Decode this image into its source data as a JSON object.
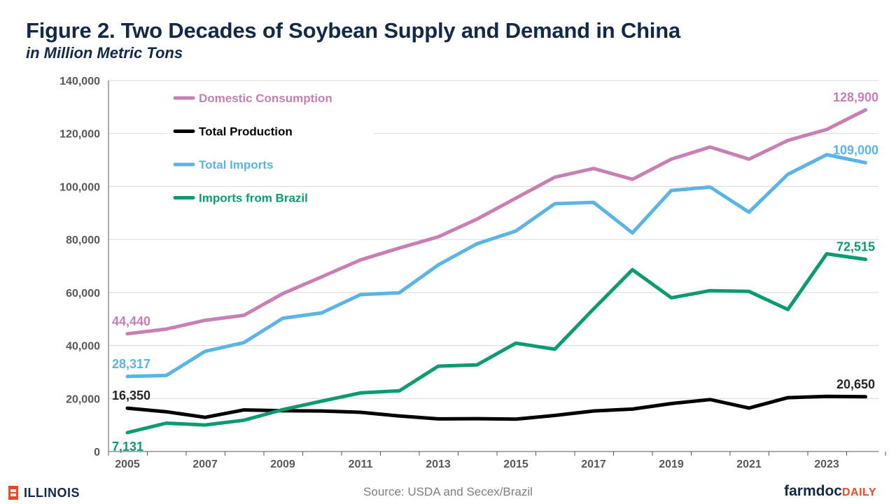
{
  "header": {
    "title": "Figure 2. Two Decades of Soybean Supply and Demand in China",
    "subtitle": "in Million Metric Tons"
  },
  "footer": {
    "source": "Source: USDA and Secex/Brazil",
    "illinois_logo_text": "ILLINOIS",
    "farmdoc_part1": "farmdoc",
    "farmdoc_part2": "DAILY"
  },
  "chart_data": {
    "type": "line",
    "title": "Figure 2. Two Decades of Soybean Supply and Demand in China",
    "subtitle": "in Million Metric Tons",
    "xlabel": "",
    "ylabel": "",
    "x": [
      2005,
      2006,
      2007,
      2008,
      2009,
      2010,
      2011,
      2012,
      2013,
      2014,
      2015,
      2016,
      2017,
      2018,
      2019,
      2020,
      2021,
      2022,
      2023,
      2024
    ],
    "x_tick_labels": [
      "2005",
      "2007",
      "2009",
      "2011",
      "2013",
      "2015",
      "2017",
      "2019",
      "2021",
      "2023"
    ],
    "y_tick_labels": [
      "0",
      "20,000",
      "40,000",
      "60,000",
      "80,000",
      "100,000",
      "120,000",
      "140,000"
    ],
    "ylim": [
      0,
      140000
    ],
    "grid": "horizontal",
    "legend_position": "top-left",
    "series": [
      {
        "name": "Domestic Consumption",
        "color": "#c97fb4",
        "values": [
          44440,
          46200,
          49500,
          51400,
          59600,
          65900,
          72300,
          76800,
          81000,
          87700,
          95600,
          103500,
          106800,
          102700,
          110300,
          114900,
          110300,
          117400,
          121500,
          128900
        ],
        "labels": [
          {
            "index": 0,
            "text": "44,440",
            "position": "above"
          },
          {
            "index": 19,
            "text": "128,900",
            "position": "above"
          }
        ]
      },
      {
        "name": "Total Production",
        "color": "#000000",
        "values": [
          16350,
          15000,
          12900,
          15700,
          15400,
          15300,
          14800,
          13400,
          12300,
          12400,
          12200,
          13600,
          15300,
          16000,
          18100,
          19600,
          16400,
          20300,
          20800,
          20650
        ],
        "labels": [
          {
            "index": 0,
            "text": "16,350",
            "position": "above"
          },
          {
            "index": 19,
            "text": "20,650",
            "position": "above"
          }
        ]
      },
      {
        "name": "Total Imports",
        "color": "#5ab4e6",
        "values": [
          28317,
          28700,
          37800,
          41100,
          50300,
          52300,
          59200,
          59900,
          70400,
          78400,
          83200,
          93500,
          94000,
          82500,
          98500,
          99800,
          90300,
          104600,
          112000,
          109000
        ],
        "labels": [
          {
            "index": 0,
            "text": "28,317",
            "position": "above"
          },
          {
            "index": 19,
            "text": "109,000",
            "position": "above"
          }
        ]
      },
      {
        "name": "Imports from Brazil",
        "color": "#0b9b72",
        "values": [
          7131,
          10700,
          10000,
          11800,
          15800,
          19000,
          22100,
          22900,
          32200,
          32700,
          40900,
          38600,
          53800,
          68600,
          58000,
          60700,
          60400,
          53600,
          74600,
          72515
        ],
        "labels": [
          {
            "index": 0,
            "text": "7,131",
            "position": "below"
          },
          {
            "index": 19,
            "text": "72,515",
            "position": "above"
          }
        ]
      }
    ]
  }
}
